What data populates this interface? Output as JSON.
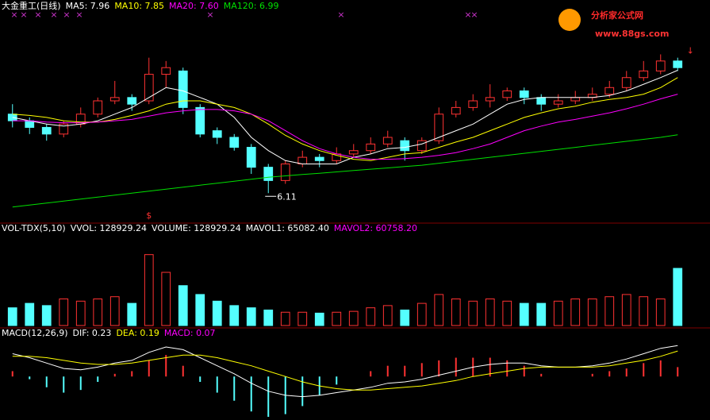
{
  "logo": {
    "title": "分析家公式网",
    "url": "www.88gs.com"
  },
  "chart_data": [
    {
      "type": "candlestick",
      "title": "大金重工(日线)",
      "up_color": "#ff3232",
      "down_color": "#54ffff",
      "ylim": [
        5.85,
        8.66
      ],
      "ohlc": [
        [
          7.3,
          7.45,
          7.1,
          7.2
        ],
        [
          7.2,
          7.25,
          7.0,
          7.1
        ],
        [
          7.1,
          7.15,
          6.9,
          7.0
        ],
        [
          7.0,
          7.2,
          6.95,
          7.15
        ],
        [
          7.15,
          7.4,
          7.1,
          7.3
        ],
        [
          7.3,
          7.55,
          7.25,
          7.5
        ],
        [
          7.5,
          7.8,
          7.45,
          7.55
        ],
        [
          7.55,
          7.6,
          7.35,
          7.45
        ],
        [
          7.5,
          8.15,
          7.45,
          7.9
        ],
        [
          7.9,
          8.1,
          7.7,
          8.0
        ],
        [
          7.95,
          8.0,
          7.3,
          7.4
        ],
        [
          7.4,
          7.45,
          6.95,
          7.0
        ],
        [
          7.05,
          7.1,
          6.85,
          6.95
        ],
        [
          6.95,
          7.0,
          6.75,
          6.8
        ],
        [
          6.8,
          6.85,
          6.4,
          6.5
        ],
        [
          6.5,
          6.55,
          6.11,
          6.3
        ],
        [
          6.3,
          6.6,
          6.25,
          6.55
        ],
        [
          6.55,
          6.75,
          6.5,
          6.65
        ],
        [
          6.65,
          6.7,
          6.5,
          6.6
        ],
        [
          6.6,
          6.8,
          6.55,
          6.7
        ],
        [
          6.7,
          6.85,
          6.65,
          6.75
        ],
        [
          6.75,
          6.95,
          6.7,
          6.85
        ],
        [
          6.85,
          7.05,
          6.8,
          6.95
        ],
        [
          6.9,
          6.95,
          6.6,
          6.75
        ],
        [
          6.75,
          6.95,
          6.7,
          6.9
        ],
        [
          6.9,
          7.4,
          6.85,
          7.3
        ],
        [
          7.3,
          7.5,
          7.25,
          7.4
        ],
        [
          7.4,
          7.6,
          7.35,
          7.5
        ],
        [
          7.5,
          7.75,
          7.4,
          7.55
        ],
        [
          7.55,
          7.7,
          7.5,
          7.65
        ],
        [
          7.65,
          7.7,
          7.45,
          7.55
        ],
        [
          7.55,
          7.6,
          7.35,
          7.45
        ],
        [
          7.45,
          7.6,
          7.4,
          7.5
        ],
        [
          7.5,
          7.65,
          7.45,
          7.55
        ],
        [
          7.55,
          7.7,
          7.5,
          7.6
        ],
        [
          7.6,
          7.8,
          7.55,
          7.7
        ],
        [
          7.7,
          7.95,
          7.65,
          7.85
        ],
        [
          7.85,
          8.1,
          7.8,
          7.95
        ],
        [
          7.95,
          8.2,
          7.9,
          8.1
        ],
        [
          8.1,
          8.15,
          7.95,
          8.0
        ]
      ],
      "series": [
        {
          "name": "MA5: 7.96",
          "color": "#ffffff",
          "values": [
            7.25,
            7.2,
            7.15,
            7.12,
            7.15,
            7.2,
            7.3,
            7.4,
            7.55,
            7.7,
            7.65,
            7.55,
            7.45,
            7.25,
            6.95,
            6.75,
            6.6,
            6.55,
            6.55,
            6.55,
            6.65,
            6.7,
            6.78,
            6.8,
            6.85,
            6.95,
            7.05,
            7.15,
            7.3,
            7.45,
            7.52,
            7.55,
            7.55,
            7.55,
            7.55,
            7.58,
            7.65,
            7.75,
            7.85,
            7.96
          ]
        },
        {
          "name": "MA10: 7.85",
          "color": "#ffff00",
          "values": [
            7.3,
            7.28,
            7.25,
            7.2,
            7.18,
            7.18,
            7.22,
            7.28,
            7.35,
            7.45,
            7.5,
            7.5,
            7.45,
            7.4,
            7.3,
            7.15,
            6.98,
            6.85,
            6.75,
            6.68,
            6.62,
            6.6,
            6.65,
            6.7,
            6.72,
            6.8,
            6.88,
            6.95,
            7.05,
            7.15,
            7.25,
            7.32,
            7.38,
            7.42,
            7.48,
            7.52,
            7.55,
            7.6,
            7.7,
            7.85
          ]
        },
        {
          "name": "MA20: 7.60",
          "color": "#ff00ff",
          "values": [
            7.2,
            7.2,
            7.18,
            7.17,
            7.17,
            7.18,
            7.2,
            7.22,
            7.27,
            7.32,
            7.35,
            7.37,
            7.37,
            7.35,
            7.3,
            7.2,
            7.05,
            6.9,
            6.78,
            6.7,
            6.65,
            6.62,
            6.62,
            6.63,
            6.65,
            6.68,
            6.72,
            6.78,
            6.85,
            6.95,
            7.05,
            7.12,
            7.18,
            7.22,
            7.27,
            7.32,
            7.38,
            7.45,
            7.53,
            7.6
          ]
        },
        {
          "name": "MA120: 6.99",
          "color": "#00e000",
          "values": [
            5.9,
            5.93,
            5.96,
            5.99,
            6.02,
            6.05,
            6.08,
            6.11,
            6.14,
            6.17,
            6.2,
            6.23,
            6.26,
            6.29,
            6.32,
            6.35,
            6.37,
            6.39,
            6.41,
            6.43,
            6.45,
            6.47,
            6.49,
            6.51,
            6.53,
            6.56,
            6.59,
            6.62,
            6.65,
            6.68,
            6.71,
            6.74,
            6.77,
            6.8,
            6.83,
            6.86,
            6.89,
            6.92,
            6.95,
            6.99
          ]
        }
      ],
      "annotations": [
        {
          "text": "6.11",
          "index": 15,
          "color": "#ffffff"
        },
        {
          "text": "$",
          "index": 8,
          "color": "#ff3232"
        },
        {
          "text": "↓",
          "index": 39,
          "color": "#ff3232"
        }
      ]
    },
    {
      "type": "bar",
      "title": "VOL-TDX(5,10)",
      "ylim": [
        0,
        206000
      ],
      "up_color": "#ff3232",
      "down_color": "#54ffff",
      "legend": [
        {
          "text": "VVOL: 128929.24",
          "color": "#ffffff"
        },
        {
          "text": "VOLUME: 128929.24",
          "color": "#ffffff"
        },
        {
          "text": "MAVOL1: 65082.40",
          "color": "#ffffff"
        },
        {
          "text": "MAVOL2: 60758.20",
          "color": "#ff00ff"
        }
      ],
      "values": [
        40000,
        50000,
        45000,
        60000,
        55000,
        60000,
        65000,
        50000,
        160000,
        120000,
        90000,
        70000,
        55000,
        45000,
        40000,
        35000,
        30000,
        30000,
        28000,
        30000,
        32000,
        40000,
        45000,
        35000,
        50000,
        70000,
        60000,
        55000,
        60000,
        55000,
        50000,
        50000,
        55000,
        60000,
        60000,
        65000,
        70000,
        65000,
        60000,
        128929.24
      ]
    },
    {
      "type": "line",
      "title": "MACD(12,26,9)",
      "ylim": [
        -0.3,
        0.35
      ],
      "up_color": "#ff3232",
      "down_color": "#54ffff",
      "series": [
        {
          "name": "DIF: 0.23",
          "color": "#ffffff",
          "values": [
            0.17,
            0.14,
            0.1,
            0.06,
            0.05,
            0.07,
            0.1,
            0.12,
            0.18,
            0.22,
            0.2,
            0.14,
            0.08,
            0.02,
            -0.05,
            -0.11,
            -0.14,
            -0.15,
            -0.14,
            -0.12,
            -0.1,
            -0.08,
            -0.05,
            -0.04,
            -0.02,
            0.01,
            0.04,
            0.07,
            0.09,
            0.1,
            0.1,
            0.08,
            0.07,
            0.07,
            0.08,
            0.1,
            0.13,
            0.17,
            0.21,
            0.23
          ]
        },
        {
          "name": "DEA: 0.19",
          "color": "#ffff00",
          "values": [
            0.15,
            0.15,
            0.14,
            0.12,
            0.1,
            0.09,
            0.09,
            0.1,
            0.12,
            0.14,
            0.16,
            0.16,
            0.14,
            0.11,
            0.08,
            0.04,
            0,
            -0.04,
            -0.07,
            -0.09,
            -0.1,
            -0.1,
            -0.09,
            -0.08,
            -0.07,
            -0.05,
            -0.03,
            0,
            0.02,
            0.04,
            0.06,
            0.07,
            0.07,
            0.07,
            0.07,
            0.08,
            0.1,
            0.12,
            0.15,
            0.19
          ]
        },
        {
          "name": "MACD: 0.07",
          "color": "#ff00ff",
          "kind": "bar",
          "values": [
            0.04,
            -0.02,
            -0.08,
            -0.12,
            -0.1,
            -0.04,
            0.02,
            0.04,
            0.12,
            0.16,
            0.08,
            -0.04,
            -0.12,
            -0.18,
            -0.26,
            -0.3,
            -0.28,
            -0.22,
            -0.14,
            -0.06,
            0,
            0.04,
            0.08,
            0.08,
            0.1,
            0.12,
            0.14,
            0.14,
            0.14,
            0.12,
            0.08,
            0.02,
            0,
            0,
            0.02,
            0.04,
            0.06,
            0.1,
            0.12,
            0.07
          ]
        }
      ]
    }
  ]
}
